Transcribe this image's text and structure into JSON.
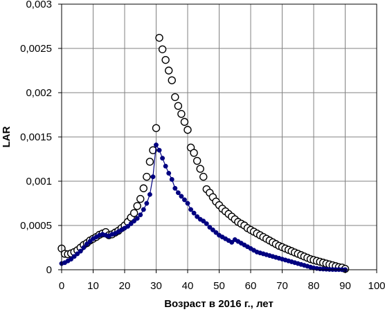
{
  "chart_data": {
    "type": "scatter",
    "title": "",
    "xlabel": "Возраст в 2016 г., лет",
    "ylabel": "LAR",
    "xlim": [
      0,
      100
    ],
    "ylim": [
      0,
      0.003
    ],
    "grid": true,
    "x_ticks": [
      0,
      10,
      20,
      30,
      40,
      50,
      60,
      70,
      80,
      90,
      100
    ],
    "x_tick_labels": [
      "0",
      "10",
      "20",
      "30",
      "40",
      "50",
      "60",
      "70",
      "80",
      "90",
      "100"
    ],
    "y_ticks": [
      0,
      0.0005,
      0.001,
      0.0015,
      0.002,
      0.0025,
      0.003
    ],
    "y_tick_labels": [
      "0",
      "0,0005",
      "0,001",
      "0,0015",
      "0,002",
      "0,0025",
      "0,003"
    ],
    "series": [
      {
        "style": "open-circles",
        "color": "#000000",
        "x": [
          0,
          1,
          2,
          3,
          4,
          5,
          6,
          7,
          8,
          9,
          10,
          11,
          12,
          13,
          14,
          15,
          16,
          17,
          18,
          19,
          20,
          21,
          22,
          23,
          24,
          25,
          26,
          27,
          28,
          29,
          30,
          31,
          32,
          33,
          34,
          35,
          36,
          37,
          38,
          39,
          40,
          41,
          42,
          43,
          44,
          45,
          46,
          47,
          48,
          49,
          50,
          51,
          52,
          53,
          54,
          55,
          56,
          57,
          58,
          59,
          60,
          61,
          62,
          63,
          64,
          65,
          66,
          67,
          68,
          69,
          70,
          71,
          72,
          73,
          74,
          75,
          76,
          77,
          78,
          79,
          80,
          81,
          82,
          83,
          84,
          85,
          86,
          87,
          88,
          89,
          90
        ],
        "y": [
          0.00024,
          0.00018,
          0.000175,
          0.000185,
          0.0002,
          0.00022,
          0.00025,
          0.00028,
          0.0003,
          0.00033,
          0.00035,
          0.00037,
          0.000395,
          0.00041,
          0.000425,
          0.00039,
          0.0004,
          0.00042,
          0.00044,
          0.00047,
          0.0005,
          0.00054,
          0.00059,
          0.00064,
          0.00072,
          0.0008,
          0.00092,
          0.00105,
          0.00122,
          0.00135,
          0.0016,
          0.00262,
          0.00249,
          0.00237,
          0.00225,
          0.00214,
          0.00195,
          0.00185,
          0.00176,
          0.00167,
          0.00158,
          0.00138,
          0.00132,
          0.00123,
          0.00114,
          0.00105,
          0.00091,
          0.00087,
          0.00082,
          0.00077,
          0.00073,
          0.00069,
          0.00066,
          0.00063,
          0.0006,
          0.00057,
          0.00054,
          0.00052,
          0.0005,
          0.00047,
          0.00045,
          0.00043,
          0.00041,
          0.00039,
          0.00037,
          0.00035,
          0.00033,
          0.00031,
          0.00029,
          0.00027,
          0.000255,
          0.00024,
          0.000225,
          0.00021,
          0.000195,
          0.00018,
          0.000165,
          0.00015,
          0.000135,
          0.00012,
          0.00011,
          0.0001,
          9e-05,
          8e-05,
          7e-05,
          6e-05,
          5e-05,
          4e-05,
          3e-05,
          2.5e-05,
          1e-05
        ]
      },
      {
        "style": "filled-circles-line",
        "color": "#000080",
        "x": [
          0,
          1,
          2,
          3,
          4,
          5,
          6,
          7,
          8,
          9,
          10,
          11,
          12,
          13,
          14,
          15,
          16,
          17,
          18,
          19,
          20,
          21,
          22,
          23,
          24,
          25,
          26,
          27,
          28,
          29,
          30,
          31,
          32,
          33,
          34,
          35,
          36,
          37,
          38,
          39,
          40,
          41,
          42,
          43,
          44,
          45,
          46,
          47,
          48,
          49,
          50,
          51,
          52,
          53,
          54,
          55,
          56,
          57,
          58,
          59,
          60,
          61,
          62,
          63,
          64,
          65,
          66,
          67,
          68,
          69,
          70,
          71,
          72,
          73,
          74,
          75,
          76,
          77,
          78,
          79,
          80,
          81,
          82,
          83,
          84,
          85,
          86,
          87,
          88,
          89,
          90
        ],
        "y": [
          7e-05,
          8e-05,
          0.0001,
          0.00012,
          0.00015,
          0.00018,
          0.00021,
          0.00025,
          0.00029,
          0.00032,
          0.00035,
          0.00037,
          0.00039,
          0.0004,
          0.00039,
          0.00038,
          0.0004,
          0.00041,
          0.00043,
          0.00045,
          0.00047,
          0.00049,
          0.00052,
          0.00055,
          0.00058,
          0.00062,
          0.00068,
          0.00075,
          0.00085,
          0.00105,
          0.00141,
          0.00135,
          0.00126,
          0.00117,
          0.00109,
          0.00102,
          0.00092,
          0.00087,
          0.00083,
          0.00079,
          0.00075,
          0.00068,
          0.00064,
          0.0006,
          0.00057,
          0.00055,
          0.00052,
          0.00048,
          0.00045,
          0.00042,
          0.00039,
          0.00037,
          0.00035,
          0.00033,
          0.00031,
          0.00034,
          0.00032,
          0.0003,
          0.00028,
          0.00026,
          0.00024,
          0.00022,
          0.0002,
          0.00019,
          0.00018,
          0.00017,
          0.00016,
          0.00015,
          0.00014,
          0.00013,
          0.00012,
          0.00011,
          0.0001,
          9e-05,
          8e-05,
          7e-05,
          6e-05,
          5e-05,
          4e-05,
          3e-05,
          2e-05,
          1.5e-05,
          1e-05,
          8e-06,
          6e-06,
          4e-06,
          3e-06,
          2e-06,
          2e-06,
          1e-06,
          1e-06
        ]
      }
    ]
  }
}
